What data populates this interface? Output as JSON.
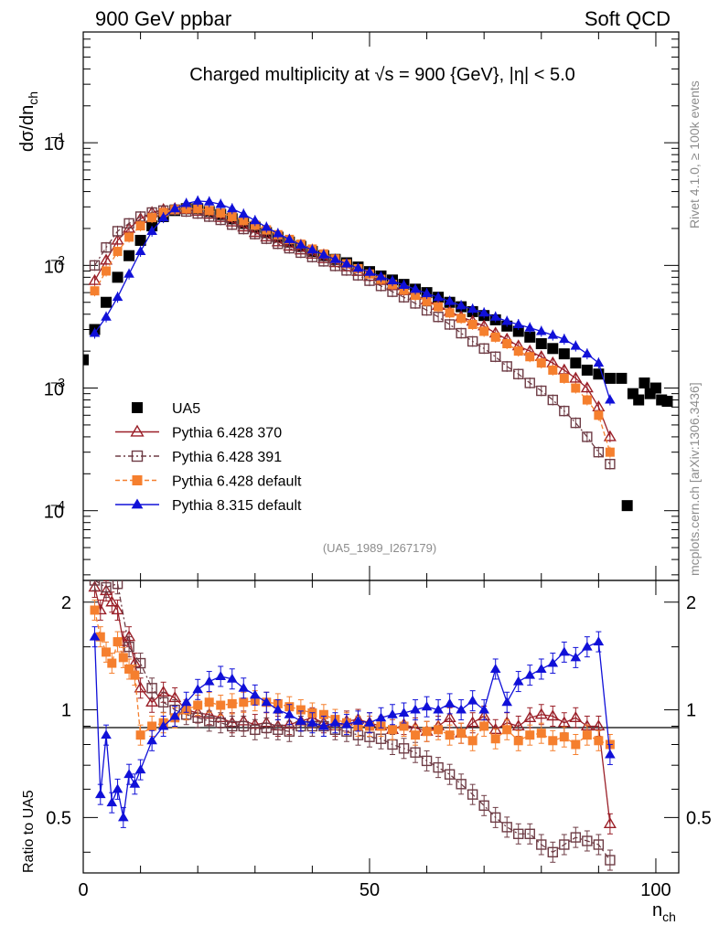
{
  "header": {
    "left": "900 GeV ppbar",
    "right": "Soft QCD"
  },
  "title": {
    "main": "Charged multiplicity at √s = 900 {GeV}, |η| < 5.0"
  },
  "analysis_id": "(UA5_1989_I267179)",
  "side_labels": {
    "top": "Rivet 4.1.0, ≥ 100k events",
    "bottom": "mcplots.cern.ch [arXiv:1306.3436]"
  },
  "axes": {
    "ylabel_main": "dσ/dn",
    "ylabel_main_sub": "ch",
    "ylabel_ratio": "Ratio to UA5",
    "xlabel": "n",
    "xlabel_sub": "ch",
    "x_ticks": [
      "0",
      "50",
      "100"
    ],
    "y_ticks_main": [
      {
        "value": 0.1,
        "base": "10",
        "exp": "−1"
      },
      {
        "value": 0.01,
        "base": "10",
        "exp": "−2"
      },
      {
        "value": 0.001,
        "base": "10",
        "exp": "−3"
      },
      {
        "value": 0.0001,
        "base": "10",
        "exp": "−4"
      }
    ],
    "y_ticks_ratio": [
      "0.5",
      "1",
      "2"
    ]
  },
  "chart_data": {
    "type": "scatter",
    "title": "Charged multiplicity at √s = 900 {GeV}, |η| < 5.0",
    "xlabel": "n_ch",
    "ylabel": "dσ/dn_ch",
    "xlim": [
      0,
      104
    ],
    "ylim": [
      2.7e-05,
      0.8
    ],
    "yscale": "log",
    "ratio_ylim": [
      0.35,
      2.3
    ],
    "ratio_ylabel": "Ratio to UA5",
    "legend_position": "lower-left",
    "legend": [
      "UA5",
      "Pythia 6.428 370",
      "Pythia 6.428 391",
      "Pythia 6.428 default",
      "Pythia 8.315 default"
    ],
    "series": [
      {
        "name": "UA5",
        "color": "#000000",
        "marker": "square-filled",
        "x": [
          0,
          2,
          4,
          6,
          8,
          10,
          12,
          14,
          16,
          18,
          20,
          22,
          24,
          26,
          28,
          30,
          32,
          34,
          36,
          38,
          40,
          42,
          44,
          46,
          48,
          50,
          52,
          54,
          56,
          58,
          60,
          62,
          64,
          66,
          68,
          70,
          72,
          74,
          76,
          78,
          80,
          82,
          84,
          86,
          88,
          90,
          92,
          94,
          95,
          96,
          97,
          98,
          99,
          100,
          101,
          102
        ],
        "values": [
          0.0017,
          0.003,
          0.005,
          0.008,
          0.012,
          0.016,
          0.021,
          0.025,
          0.028,
          0.029,
          0.029,
          0.0275,
          0.026,
          0.024,
          0.022,
          0.0205,
          0.0185,
          0.017,
          0.0155,
          0.0143,
          0.013,
          0.012,
          0.0112,
          0.0105,
          0.0097,
          0.0089,
          0.0082,
          0.0076,
          0.007,
          0.0064,
          0.006,
          0.0055,
          0.005,
          0.0046,
          0.0042,
          0.0039,
          0.0036,
          0.0032,
          0.0029,
          0.0026,
          0.0023,
          0.0021,
          0.0019,
          0.0016,
          0.0014,
          0.0013,
          0.0012,
          0.0012,
          0.00011,
          0.0009,
          0.0008,
          0.0011,
          0.0009,
          0.001,
          0.0008,
          0.00078
        ]
      },
      {
        "name": "Pythia 6.428 370",
        "color": "#9a1f28",
        "marker": "triangle-open",
        "x": [
          2,
          4,
          6,
          8,
          10,
          12,
          14,
          16,
          18,
          20,
          22,
          24,
          26,
          28,
          30,
          32,
          34,
          36,
          38,
          40,
          42,
          44,
          46,
          48,
          50,
          52,
          54,
          56,
          58,
          60,
          62,
          64,
          66,
          68,
          70,
          72,
          74,
          76,
          78,
          80,
          82,
          84,
          86,
          88,
          90,
          92
        ],
        "values": [
          0.0075,
          0.011,
          0.016,
          0.02,
          0.024,
          0.027,
          0.0285,
          0.029,
          0.0285,
          0.0275,
          0.026,
          0.0245,
          0.0225,
          0.0205,
          0.0185,
          0.017,
          0.0155,
          0.0143,
          0.0133,
          0.0123,
          0.0113,
          0.0105,
          0.0097,
          0.0089,
          0.0081,
          0.0075,
          0.0068,
          0.0062,
          0.0057,
          0.0052,
          0.0047,
          0.0042,
          0.0038,
          0.0035,
          0.0032,
          0.0028,
          0.0025,
          0.0022,
          0.002,
          0.0018,
          0.0016,
          0.0014,
          0.0012,
          0.001,
          0.0007,
          0.0004
        ]
      },
      {
        "name": "Pythia 6.428 391",
        "color": "#6e3c45",
        "marker": "square-open",
        "x": [
          2,
          4,
          6,
          8,
          10,
          12,
          14,
          16,
          18,
          20,
          22,
          24,
          26,
          28,
          30,
          32,
          34,
          36,
          38,
          40,
          42,
          44,
          46,
          48,
          50,
          52,
          54,
          56,
          58,
          60,
          62,
          64,
          66,
          68,
          70,
          72,
          74,
          76,
          78,
          80,
          82,
          84,
          86,
          88,
          90,
          92
        ],
        "values": [
          0.01,
          0.014,
          0.019,
          0.022,
          0.025,
          0.027,
          0.028,
          0.0285,
          0.0275,
          0.0265,
          0.025,
          0.0235,
          0.0215,
          0.0198,
          0.018,
          0.0165,
          0.015,
          0.0138,
          0.0127,
          0.0117,
          0.0108,
          0.0099,
          0.0091,
          0.0083,
          0.0075,
          0.0068,
          0.0061,
          0.0055,
          0.0049,
          0.0043,
          0.0038,
          0.0033,
          0.0028,
          0.0024,
          0.0021,
          0.0018,
          0.0015,
          0.0013,
          0.0011,
          0.00095,
          0.0008,
          0.00065,
          0.00052,
          0.0004,
          0.0003,
          0.00024
        ]
      },
      {
        "name": "Pythia 6.428 default",
        "color": "#f57f2e",
        "marker": "square-filled",
        "x": [
          2,
          4,
          6,
          8,
          10,
          12,
          14,
          16,
          18,
          20,
          22,
          24,
          26,
          28,
          30,
          32,
          34,
          36,
          38,
          40,
          42,
          44,
          46,
          48,
          50,
          52,
          54,
          56,
          58,
          60,
          62,
          64,
          66,
          68,
          70,
          72,
          74,
          76,
          78,
          80,
          82,
          84,
          86,
          88,
          90,
          92
        ],
        "values": [
          0.0062,
          0.009,
          0.013,
          0.017,
          0.021,
          0.0245,
          0.027,
          0.0285,
          0.029,
          0.029,
          0.028,
          0.0268,
          0.025,
          0.0232,
          0.0213,
          0.0195,
          0.0178,
          0.0163,
          0.0149,
          0.0136,
          0.0124,
          0.0113,
          0.0103,
          0.0094,
          0.0085,
          0.0077,
          0.007,
          0.0063,
          0.0057,
          0.0051,
          0.0046,
          0.0041,
          0.0037,
          0.0033,
          0.0029,
          0.0026,
          0.0023,
          0.002,
          0.0018,
          0.0016,
          0.0014,
          0.0012,
          0.001,
          0.0008,
          0.0006,
          0.0003
        ]
      },
      {
        "name": "Pythia 8.315 default",
        "color": "#1010d8",
        "marker": "triangle-filled",
        "x": [
          2,
          4,
          6,
          8,
          10,
          12,
          14,
          16,
          18,
          20,
          22,
          24,
          26,
          28,
          30,
          32,
          34,
          36,
          38,
          40,
          42,
          44,
          46,
          48,
          50,
          52,
          54,
          56,
          58,
          60,
          62,
          64,
          66,
          68,
          70,
          72,
          74,
          76,
          78,
          80,
          82,
          84,
          86,
          88,
          90,
          92
        ],
        "values": [
          0.0028,
          0.0038,
          0.0055,
          0.0085,
          0.013,
          0.019,
          0.0245,
          0.029,
          0.032,
          0.0335,
          0.033,
          0.0315,
          0.029,
          0.0262,
          0.0232,
          0.0205,
          0.0182,
          0.0163,
          0.0147,
          0.0134,
          0.0122,
          0.0112,
          0.0103,
          0.0095,
          0.0088,
          0.0081,
          0.0075,
          0.0069,
          0.0064,
          0.0059,
          0.0055,
          0.0051,
          0.0047,
          0.0044,
          0.0041,
          0.0038,
          0.0035,
          0.0033,
          0.0031,
          0.0029,
          0.0027,
          0.0025,
          0.0022,
          0.0019,
          0.0016,
          0.0008
        ]
      }
    ]
  },
  "ratio_data": {
    "reference": "UA5",
    "series": [
      {
        "name": "Pythia 6.428 370",
        "color": "#9a1f28",
        "marker": "triangle-open",
        "x": [
          2,
          3,
          4,
          5,
          6,
          7,
          8,
          9,
          10,
          12,
          14,
          16,
          18,
          20,
          22,
          24,
          26,
          28,
          30,
          32,
          34,
          36,
          38,
          40,
          42,
          44,
          46,
          48,
          50,
          52,
          54,
          56,
          58,
          60,
          62,
          64,
          66,
          68,
          70,
          72,
          74,
          76,
          78,
          80,
          82,
          84,
          86,
          88,
          90,
          92
        ],
        "values": [
          2.2,
          1.9,
          2.15,
          2.0,
          1.9,
          1.55,
          1.6,
          1.35,
          1.15,
          1.05,
          1.12,
          1.08,
          1.0,
          0.98,
          0.97,
          0.95,
          0.92,
          0.93,
          0.91,
          0.92,
          0.9,
          0.91,
          0.93,
          0.95,
          0.92,
          0.9,
          0.93,
          0.94,
          0.92,
          0.9,
          0.88,
          0.91,
          0.89,
          0.87,
          0.9,
          0.95,
          0.86,
          0.92,
          0.96,
          0.88,
          0.92,
          0.9,
          0.95,
          0.97,
          0.96,
          0.92,
          0.95,
          0.9,
          0.9,
          0.48
        ]
      },
      {
        "name": "Pythia 6.428 391",
        "color": "#6e3c45",
        "marker": "square-open",
        "x": [
          2,
          4,
          6,
          8,
          10,
          12,
          14,
          16,
          18,
          20,
          22,
          24,
          26,
          28,
          30,
          32,
          34,
          36,
          38,
          40,
          42,
          44,
          46,
          48,
          50,
          52,
          54,
          56,
          58,
          60,
          62,
          64,
          66,
          68,
          70,
          72,
          74,
          76,
          78,
          80,
          82,
          84,
          86,
          88,
          90,
          92
        ],
        "values": [
          2.3,
          2.2,
          2.25,
          1.5,
          1.35,
          1.15,
          1.05,
          1.0,
          0.97,
          0.95,
          0.93,
          0.92,
          0.9,
          0.9,
          0.88,
          0.89,
          0.88,
          0.87,
          0.9,
          0.9,
          0.9,
          0.88,
          0.87,
          0.85,
          0.84,
          0.83,
          0.8,
          0.78,
          0.76,
          0.72,
          0.69,
          0.66,
          0.62,
          0.58,
          0.54,
          0.5,
          0.47,
          0.45,
          0.45,
          0.42,
          0.4,
          0.42,
          0.44,
          0.43,
          0.42,
          0.38
        ]
      },
      {
        "name": "Pythia 6.428 default",
        "color": "#f57f2e",
        "marker": "square-filled",
        "x": [
          2,
          3,
          4,
          5,
          6,
          7,
          8,
          9,
          10,
          12,
          14,
          16,
          18,
          20,
          22,
          24,
          26,
          28,
          30,
          32,
          34,
          36,
          38,
          40,
          42,
          44,
          46,
          48,
          50,
          52,
          54,
          56,
          58,
          60,
          62,
          64,
          66,
          68,
          70,
          72,
          74,
          76,
          78,
          80,
          82,
          84,
          86,
          88,
          90,
          92
        ],
        "values": [
          1.9,
          1.6,
          1.45,
          1.35,
          1.55,
          1.4,
          1.3,
          1.25,
          0.85,
          0.9,
          0.92,
          0.95,
          1.0,
          1.03,
          1.05,
          1.03,
          1.04,
          1.05,
          1.06,
          1.05,
          1.04,
          1.02,
          1.0,
          0.98,
          0.97,
          0.94,
          0.92,
          0.9,
          0.9,
          0.9,
          0.88,
          0.9,
          0.85,
          0.87,
          0.88,
          0.85,
          0.86,
          0.82,
          0.9,
          0.83,
          0.88,
          0.82,
          0.85,
          0.86,
          0.82,
          0.84,
          0.8,
          0.85,
          0.82,
          0.8
        ]
      },
      {
        "name": "Pythia 8.315 default",
        "color": "#1010d8",
        "marker": "triangle-filled",
        "x": [
          2,
          3,
          4,
          5,
          6,
          7,
          8,
          9,
          10,
          12,
          14,
          16,
          18,
          20,
          22,
          24,
          26,
          28,
          30,
          32,
          34,
          36,
          38,
          40,
          42,
          44,
          46,
          48,
          50,
          52,
          54,
          56,
          58,
          60,
          62,
          64,
          66,
          68,
          70,
          72,
          74,
          76,
          78,
          80,
          82,
          84,
          86,
          88,
          90,
          92
        ],
        "values": [
          1.6,
          0.58,
          0.85,
          0.55,
          0.6,
          0.5,
          0.66,
          0.62,
          0.68,
          0.82,
          0.9,
          0.96,
          1.05,
          1.14,
          1.2,
          1.24,
          1.22,
          1.15,
          1.1,
          1.05,
          1.0,
          0.97,
          0.93,
          0.92,
          0.9,
          0.92,
          0.91,
          0.93,
          0.92,
          0.95,
          0.97,
          0.98,
          1.0,
          1.02,
          1.0,
          1.04,
          1.0,
          1.06,
          1.0,
          1.3,
          1.05,
          1.2,
          1.25,
          1.3,
          1.35,
          1.45,
          1.4,
          1.5,
          1.55,
          0.75
        ]
      }
    ]
  }
}
